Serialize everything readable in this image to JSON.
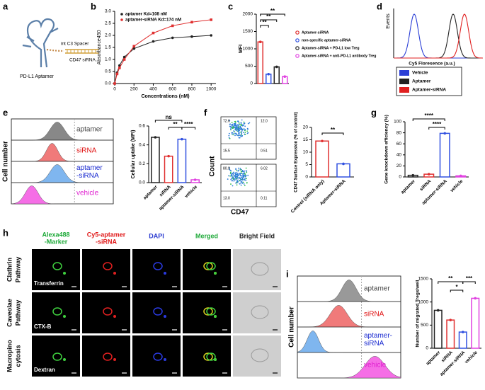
{
  "panel_labels": [
    "a",
    "b",
    "c",
    "d",
    "e",
    "f",
    "g",
    "h",
    "i"
  ],
  "panel_a": {
    "labels": [
      "PD-L1 Aptamer",
      "int C3 Spacer",
      "CD47 siRNA"
    ]
  },
  "panel_d": {
    "ylabel": "Events",
    "xlabel": "Cy5 Floresence (a.u.)",
    "legend": [
      "Vehicle",
      "Aptamer",
      "Aptamer-siRNA"
    ],
    "colors": [
      "#2b3fd6",
      "#222222",
      "#e02020"
    ]
  },
  "panel_e_hist": {
    "ylabel": "Cell number",
    "labels": [
      [
        "aptamer"
      ],
      [
        "siRNA"
      ],
      [
        "aptamer",
        "-siRNA"
      ],
      [
        "vehicle"
      ]
    ],
    "colors": [
      "#888888",
      "#f07a7a",
      "#7fb6ef",
      "#f56ee6"
    ],
    "text_colors": [
      "#444444",
      "#e01010",
      "#1a2ad0",
      "#e020d0"
    ]
  },
  "panel_f_flow": {
    "ylabel": "Count",
    "xlabel": "CD47",
    "quadrants": [
      [
        "72.6",
        "12.0",
        "15.5",
        "0.51"
      ],
      [
        "80.9",
        "6.02",
        "13.0",
        "0.11"
      ]
    ]
  },
  "panel_h": {
    "columns": [
      [
        "Alexa488",
        "-Marker"
      ],
      [
        "Cy5-aptamer",
        "-siRNA"
      ],
      [
        "DAPI"
      ],
      [
        "Merged"
      ],
      [
        "Bright Field"
      ]
    ],
    "column_colors": [
      "#1faa3a",
      "#e01818",
      "#2a3ad0",
      "#1faa3a",
      "#222222"
    ],
    "rows": [
      [
        "Clathrin",
        "Pathway"
      ],
      [
        "Caveolae",
        "Pathway"
      ],
      [
        "Macropino",
        "cytosis"
      ]
    ],
    "markers": [
      "Transferrin",
      "CTX-B",
      "Dextran"
    ]
  },
  "panel_i_hist": {
    "ylabel": "Cell number",
    "labels": [
      [
        "aptamer"
      ],
      [
        "siRNA"
      ],
      [
        "aptamer-",
        "siRNA"
      ],
      [
        "vehicle"
      ]
    ],
    "colors": [
      "#999999",
      "#f07a7a",
      "#7fb6ef",
      "#f56ee6"
    ],
    "text_colors": [
      "#444444",
      "#e01010",
      "#1a2ad0",
      "#e020d0"
    ]
  },
  "chart_data": [
    {
      "type": "line",
      "xlabel": "Concentrations (nM)",
      "ylabel": "Absorbance450",
      "xlim": [
        0,
        1050
      ],
      "xticks": [
        0,
        200,
        400,
        600,
        800,
        1000
      ],
      "ylim": [
        0,
        3
      ],
      "yticks": [
        {
          "value": 0,
          "label": "0.0"
        },
        {
          "value": 0.5,
          "label": "0.5"
        },
        {
          "value": 1,
          "label": "1.0"
        },
        {
          "value": 1.5,
          "label": "1.5"
        },
        {
          "value": 2,
          "label": "2.0"
        },
        {
          "value": 2.5,
          "label": "2.5"
        },
        {
          "value": 3,
          "label": "3.0"
        }
      ],
      "x": [
        0,
        25,
        50,
        100,
        200,
        400,
        600,
        800,
        1000
      ],
      "series": [
        {
          "name": "aptamer Kd=108 nM",
          "color": "#222222",
          "values": [
            0,
            0.45,
            0.75,
            1.1,
            1.45,
            1.75,
            1.9,
            1.95,
            2.0
          ]
        },
        {
          "name": "aptamer-siRNA Kd=174 nM",
          "color": "#e03030",
          "values": [
            0,
            0.4,
            0.65,
            1.0,
            1.55,
            2.1,
            2.4,
            2.55,
            2.65
          ]
        }
      ]
    },
    {
      "type": "bar",
      "ylabel": "MFI",
      "categories": [
        "Aptamer-siRNA",
        "non-specific aptamer-siRNA",
        "Aptamer-siRNA + PD-L1 low Treg",
        "Aptamer-siRNA + anti-PD-L1 antibody Treg"
      ],
      "values": [
        1200,
        270,
        480,
        200
      ],
      "colors": [
        "#e03030",
        "#3050e0",
        "#222222",
        "#e040e0"
      ],
      "ylim": [
        0,
        2000
      ],
      "yticks": [
        0,
        500,
        1000,
        1500,
        2000
      ],
      "annotations": [
        "**",
        "**",
        "**"
      ]
    },
    {
      "type": "bar",
      "ylabel": "Cellular uptake (MFI)",
      "categories": [
        "aptamer",
        "siRNA",
        "aptamer-siRNA",
        "vehicle"
      ],
      "values": [
        0.48,
        0.28,
        0.46,
        0.03
      ],
      "colors": [
        "#222222",
        "#e03030",
        "#3050e0",
        "#e040e0"
      ],
      "ylim": [
        0,
        0.6
      ],
      "yticks": [
        {
          "value": 0,
          "label": "0.0"
        },
        {
          "value": 0.2,
          "label": "0.2"
        },
        {
          "value": 0.4,
          "label": "0.4"
        },
        {
          "value": 0.6,
          "label": "0.6"
        }
      ],
      "annotations": [
        "ns",
        "**",
        "****"
      ]
    },
    {
      "type": "bar",
      "ylabel": "CD47 Surface Expression (% of control)",
      "categories": [
        "Control (siRNA only)",
        "Aptamer-siRNA"
      ],
      "values": [
        14.5,
        5.3
      ],
      "colors": [
        "#e03030",
        "#3050e0"
      ],
      "ylim": [
        0,
        20
      ],
      "yticks": [
        0,
        5,
        10,
        15,
        20
      ],
      "annotations": [
        "**"
      ]
    },
    {
      "type": "bar",
      "ylabel": "Gene knockdown efficiency (%)",
      "categories": [
        "aptamer",
        "siRNA",
        "aptamer-siRNA",
        "vehicle"
      ],
      "values": [
        3,
        5,
        79,
        2
      ],
      "colors": [
        "#222222",
        "#e03030",
        "#3050e0",
        "#e040e0"
      ],
      "ylim": [
        0,
        100
      ],
      "yticks": [
        0,
        20,
        40,
        60,
        80,
        100
      ],
      "annotations": [
        "****",
        "****"
      ]
    },
    {
      "type": "bar",
      "ylabel": "Number of migrated Tregs/well",
      "categories": [
        "aptamer",
        "siRNA",
        "aptamer-siRNA",
        "vehicle"
      ],
      "values": [
        820,
        610,
        350,
        1080
      ],
      "colors": [
        "#222222",
        "#e03030",
        "#3050e0",
        "#e040e0"
      ],
      "ylim": [
        0,
        1500
      ],
      "yticks": [
        0,
        500,
        1000,
        1500
      ],
      "annotations": [
        "**",
        "*",
        "***"
      ]
    }
  ]
}
